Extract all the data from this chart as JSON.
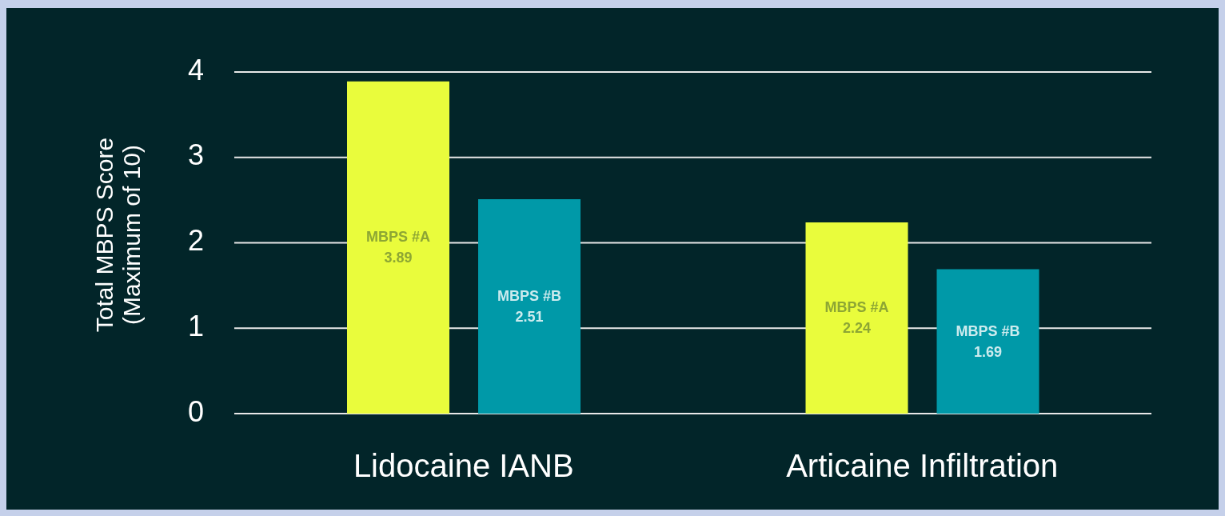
{
  "chart_data": {
    "type": "bar",
    "ylabel": "Total MBPS Score\n(Maximum of 10)",
    "categories": [
      "Lidocaine IANB",
      "Articaine Infiltration"
    ],
    "series": [
      {
        "name": "MBPS #A",
        "color": "#e9fc3c",
        "values": [
          3.89,
          2.24
        ]
      },
      {
        "name": "MBPS #B",
        "color": "#0099a8",
        "values": [
          2.51,
          1.69
        ]
      }
    ],
    "ylim": [
      0,
      4
    ],
    "yticks": [
      0,
      1,
      2,
      3,
      4
    ],
    "grid": "y",
    "data_labels": true
  }
}
